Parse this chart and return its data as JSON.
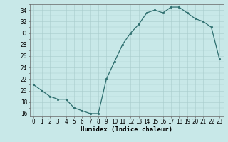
{
  "x": [
    0,
    1,
    2,
    3,
    4,
    5,
    6,
    7,
    8,
    9,
    10,
    11,
    12,
    13,
    14,
    15,
    16,
    17,
    18,
    19,
    20,
    21,
    22,
    23
  ],
  "y": [
    21,
    20,
    19,
    18.5,
    18.5,
    17,
    16.5,
    16,
    16,
    22,
    25,
    28,
    30,
    31.5,
    33.5,
    34,
    33.5,
    34.5,
    34.5,
    33.5,
    32.5,
    32,
    31,
    25.5
  ],
  "line_color": "#2d6e6e",
  "marker_color": "#2d6e6e",
  "bg_color": "#c8e8e8",
  "grid_color": "#a8cccc",
  "xlabel": "Humidex (Indice chaleur)",
  "ylim": [
    15.5,
    35.0
  ],
  "xlim": [
    -0.5,
    23.5
  ],
  "yticks": [
    16,
    18,
    20,
    22,
    24,
    26,
    28,
    30,
    32,
    34
  ],
  "xticks": [
    0,
    1,
    2,
    3,
    4,
    5,
    6,
    7,
    8,
    9,
    10,
    11,
    12,
    13,
    14,
    15,
    16,
    17,
    18,
    19,
    20,
    21,
    22,
    23
  ],
  "xtick_labels": [
    "0",
    "1",
    "2",
    "3",
    "4",
    "5",
    "6",
    "7",
    "8",
    "9",
    "10",
    "11",
    "12",
    "13",
    "14",
    "15",
    "16",
    "17",
    "18",
    "19",
    "20",
    "21",
    "22",
    "23"
  ],
  "label_fontsize": 6.5,
  "tick_fontsize": 5.5
}
